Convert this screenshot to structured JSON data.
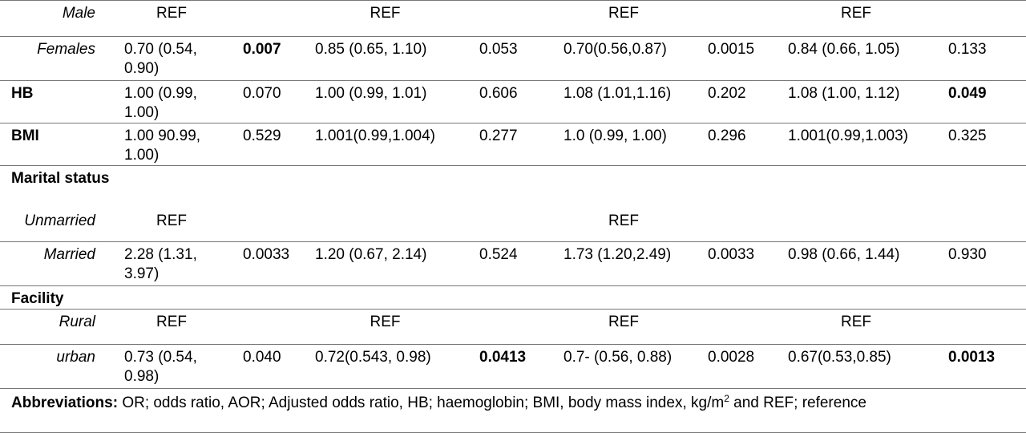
{
  "table": {
    "rows": [
      [
        "Male",
        "REF",
        null,
        "REF",
        null,
        "REF",
        null,
        "REF",
        null
      ],
      [
        "Females",
        "0.70 (0.54, 0.90)",
        "0.007",
        "0.85 (0.65, 1.10)",
        "0.053",
        "0.70(0.56,0.87)",
        "0.0015",
        "0.84 (0.66, 1.05)",
        "0.133"
      ],
      [
        "HB",
        "1.00 (0.99, 1.00)",
        "0.070",
        "1.00 (0.99, 1.01)",
        "0.606",
        "1.08 (1.01,1.16)",
        "0.202",
        "1.08 (1.00, 1.12)",
        "0.049"
      ],
      [
        "BMI",
        "1.00 90.99, 1.00)",
        "0.529",
        "1.001(0.99,1.004)",
        "0.277",
        "1.0 (0.99, 1.00)",
        "0.296",
        "1.001(0.99,1.003)",
        "0.325"
      ],
      [
        "Marital status",
        null,
        null,
        null,
        null,
        null,
        null,
        null,
        null
      ],
      [
        "Unmarried",
        "REF",
        null,
        null,
        null,
        "REF",
        null,
        null,
        null
      ],
      [
        "Married",
        "2.28 (1.31, 3.97)",
        "0.0033",
        "1.20 (0.67, 2.14)",
        "0.524",
        "1.73 (1.20,2.49)",
        "0.0033",
        "0.98 (0.66, 1.44)",
        "0.930"
      ],
      [
        "Facility",
        null,
        null,
        null,
        null,
        null,
        null,
        null,
        null
      ],
      [
        "Rural",
        "REF",
        null,
        "REF",
        null,
        "REF",
        null,
        "REF",
        null
      ],
      [
        "urban",
        "0.73 (0.54, 0.98)",
        "0.040",
        "0.72(0.543, 0.98)",
        "0.0413",
        "0.7- (0.56, 0.88)",
        "0.0028",
        "0.67(0.53,0.85)",
        "0.0013"
      ]
    ]
  },
  "footnote": {
    "label": "Abbreviations:",
    "text": "OR; odds ratio, AOR; Adjusted odds ratio, HB; haemoglobin; BMI, body mass index, kg/m",
    "superscript": "2",
    "text_end": " and REF; reference"
  }
}
